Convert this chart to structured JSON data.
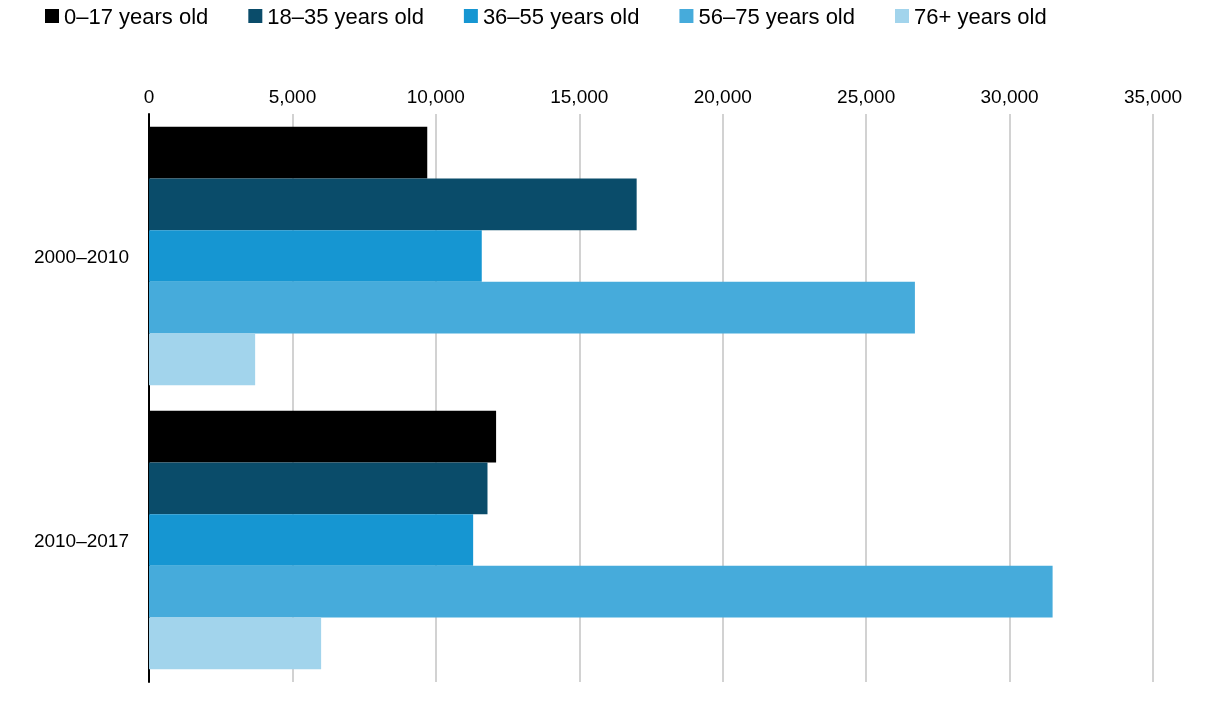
{
  "chart_data": {
    "type": "bar",
    "orientation": "horizontal",
    "categories": [
      "2000–2010",
      "2010–2017"
    ],
    "series": [
      {
        "name": "0–17 years old",
        "color": "#000000",
        "values": [
          9700,
          12100
        ]
      },
      {
        "name": "18–35 years old",
        "color": "#0a4c6a",
        "values": [
          17000,
          11800
        ]
      },
      {
        "name": "36–55 years old",
        "color": "#1696d2",
        "values": [
          11600,
          11300
        ]
      },
      {
        "name": "56–75 years old",
        "color": "#46abdb",
        "values": [
          26700,
          31500
        ]
      },
      {
        "name": "76+ years old",
        "color": "#a2d4ec",
        "values": [
          3700,
          6000
        ]
      }
    ],
    "xlim": [
      0,
      35000
    ],
    "xticks": [
      0,
      {
        "value": 5000,
        "label": "5,000"
      },
      {
        "value": 10000,
        "label": "10,000"
      },
      {
        "value": 15000,
        "label": "15,000"
      },
      {
        "value": 20000,
        "label": "20,000"
      },
      {
        "value": 25000,
        "label": "25,000"
      },
      {
        "value": 30000,
        "label": "30,000"
      },
      {
        "value": 35000,
        "label": "35,000"
      }
    ],
    "grid": "x",
    "legend": "top left"
  }
}
